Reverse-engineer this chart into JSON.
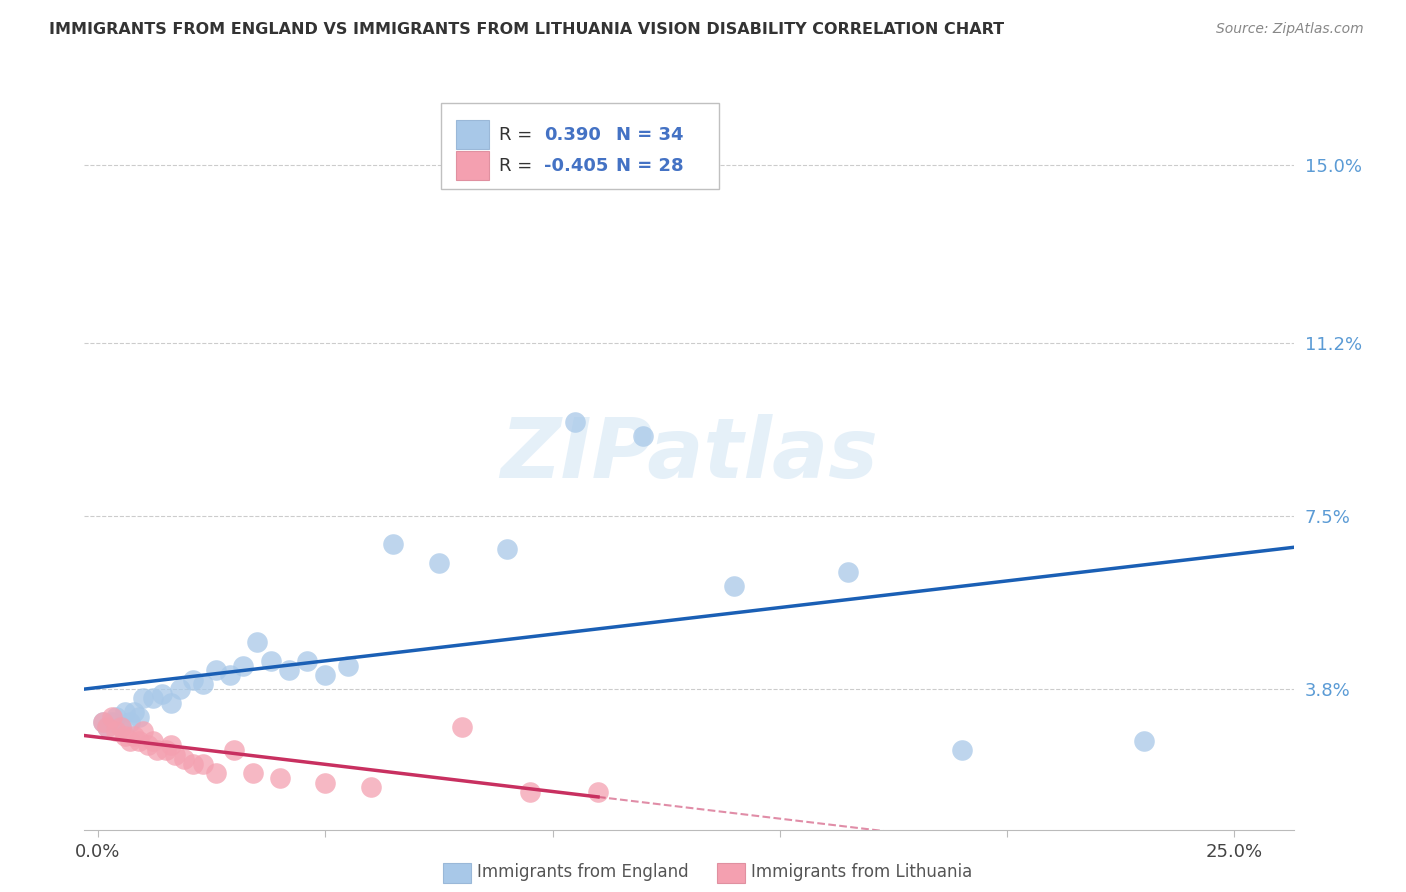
{
  "title": "IMMIGRANTS FROM ENGLAND VS IMMIGRANTS FROM LITHUANIA VISION DISABILITY CORRELATION CHART",
  "source": "Source: ZipAtlas.com",
  "ylabel_ticks": [
    0.038,
    0.075,
    0.112,
    0.15
  ],
  "ylabel_labels": [
    "3.8%",
    "7.5%",
    "11.2%",
    "15.0%"
  ],
  "ylim": [
    0.008,
    0.168
  ],
  "xlim": [
    -0.003,
    0.263
  ],
  "england_x": [
    0.001,
    0.002,
    0.003,
    0.004,
    0.005,
    0.006,
    0.007,
    0.008,
    0.009,
    0.01,
    0.012,
    0.014,
    0.016,
    0.018,
    0.021,
    0.023,
    0.026,
    0.029,
    0.032,
    0.035,
    0.038,
    0.042,
    0.046,
    0.05,
    0.055,
    0.065,
    0.075,
    0.09,
    0.105,
    0.12,
    0.14,
    0.165,
    0.19,
    0.23
  ],
  "england_y": [
    0.031,
    0.03,
    0.031,
    0.032,
    0.03,
    0.033,
    0.031,
    0.033,
    0.032,
    0.036,
    0.036,
    0.037,
    0.035,
    0.038,
    0.04,
    0.039,
    0.042,
    0.041,
    0.043,
    0.048,
    0.044,
    0.042,
    0.044,
    0.041,
    0.043,
    0.069,
    0.065,
    0.068,
    0.095,
    0.092,
    0.06,
    0.063,
    0.025,
    0.027
  ],
  "lithuania_x": [
    0.001,
    0.002,
    0.003,
    0.004,
    0.005,
    0.006,
    0.007,
    0.008,
    0.009,
    0.01,
    0.011,
    0.012,
    0.013,
    0.015,
    0.016,
    0.017,
    0.019,
    0.021,
    0.023,
    0.026,
    0.03,
    0.034,
    0.04,
    0.05,
    0.06,
    0.08,
    0.095,
    0.11
  ],
  "lithuania_y": [
    0.031,
    0.03,
    0.032,
    0.029,
    0.03,
    0.028,
    0.027,
    0.028,
    0.027,
    0.029,
    0.026,
    0.027,
    0.025,
    0.025,
    0.026,
    0.024,
    0.023,
    0.022,
    0.022,
    0.02,
    0.025,
    0.02,
    0.019,
    0.018,
    0.017,
    0.03,
    0.016,
    0.016
  ],
  "england_color": "#a8c8e8",
  "england_line_color": "#1a5fb5",
  "lithuania_color": "#f4a0b0",
  "lithuania_line_color": "#c83060",
  "legend_swatch_england": "#a8c8e8",
  "legend_swatch_lithuania": "#f4a0b0",
  "legend_text_color": "#4472c4",
  "watermark": "ZIPatlas",
  "background_color": "#ffffff",
  "grid_color": "#cccccc"
}
